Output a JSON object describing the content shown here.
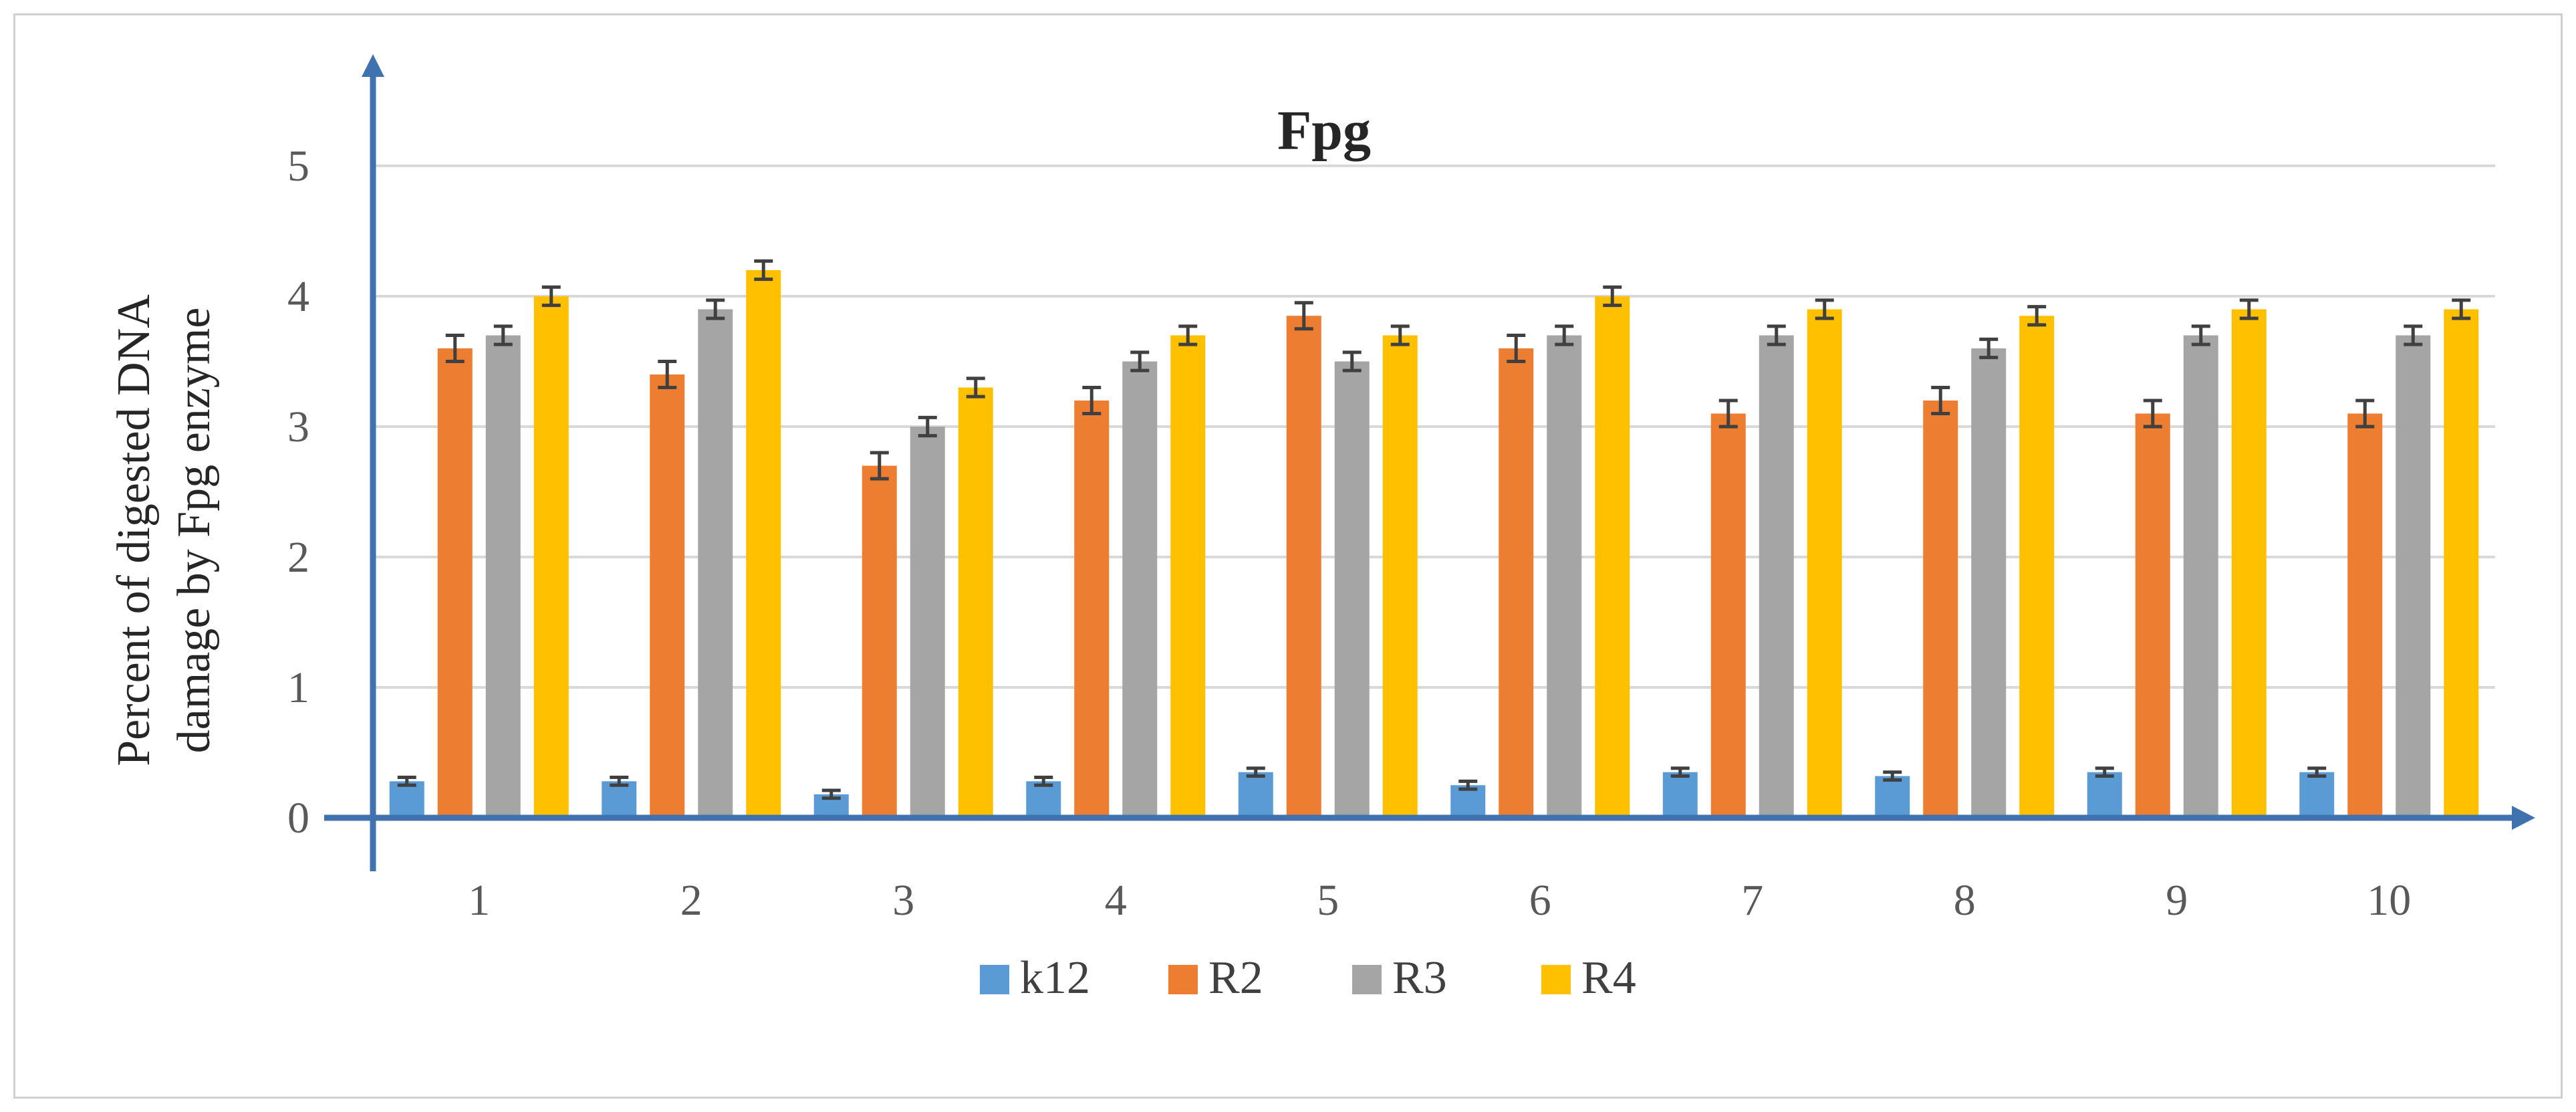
{
  "chart_data": {
    "type": "bar",
    "title": "Fpg",
    "ylabel": "Percent of digested DNA damage by Fpg enzyme",
    "xlabel": "",
    "categories": [
      "1",
      "2",
      "3",
      "4",
      "5",
      "6",
      "7",
      "8",
      "9",
      "10"
    ],
    "ylim": [
      0,
      5.5
    ],
    "yticks": [
      "0",
      "1",
      "2",
      "3",
      "4",
      "5"
    ],
    "grid": true,
    "legend_position": "bottom",
    "series": [
      {
        "name": "k12",
        "color": "#5b9bd5",
        "values": [
          0.28,
          0.28,
          0.18,
          0.28,
          0.35,
          0.25,
          0.35,
          0.32,
          0.35,
          0.35
        ],
        "errors": [
          0.03,
          0.03,
          0.03,
          0.03,
          0.03,
          0.03,
          0.03,
          0.03,
          0.03,
          0.03
        ]
      },
      {
        "name": "R2",
        "color": "#ed7d31",
        "values": [
          3.6,
          3.4,
          2.7,
          3.2,
          3.85,
          3.6,
          3.1,
          3.2,
          3.1,
          3.1
        ],
        "errors": [
          0.1,
          0.1,
          0.1,
          0.1,
          0.1,
          0.1,
          0.1,
          0.1,
          0.1,
          0.1
        ]
      },
      {
        "name": "R3",
        "color": "#a5a5a5",
        "values": [
          3.7,
          3.9,
          3.0,
          3.5,
          3.5,
          3.7,
          3.7,
          3.6,
          3.7,
          3.7
        ],
        "errors": [
          0.07,
          0.07,
          0.07,
          0.07,
          0.07,
          0.07,
          0.07,
          0.07,
          0.07,
          0.07
        ]
      },
      {
        "name": "R4",
        "color": "#ffc000",
        "values": [
          4.0,
          4.2,
          3.3,
          3.7,
          3.7,
          4.0,
          3.9,
          3.85,
          3.9,
          3.9
        ],
        "errors": [
          0.07,
          0.07,
          0.07,
          0.07,
          0.07,
          0.07,
          0.07,
          0.07,
          0.07,
          0.07
        ]
      }
    ]
  }
}
